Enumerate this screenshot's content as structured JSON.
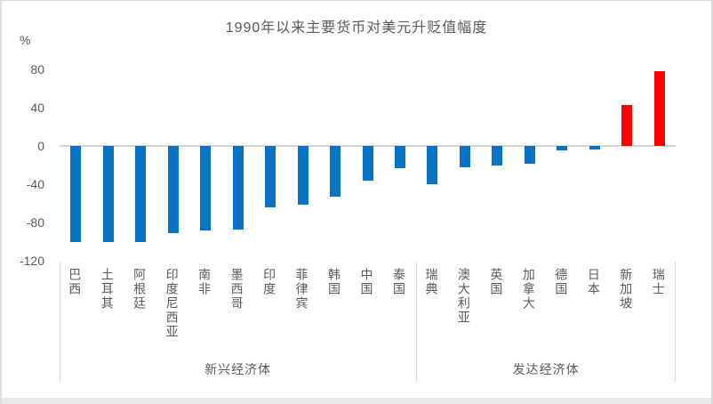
{
  "chart": {
    "title": "1990年以来主要货币对美元升贬值幅度",
    "unit_label": "%"
  },
  "chart_data": {
    "type": "bar",
    "title": "1990年以来主要货币对美元升贬值幅度",
    "ylabel": "%",
    "xlabel": "",
    "ylim": [
      -120,
      80
    ],
    "yticks": [
      80,
      40,
      0,
      -40,
      -80,
      -120
    ],
    "grid": false,
    "legend": null,
    "categories": [
      "巴西",
      "土耳其",
      "阿根廷",
      "印度尼西亚",
      "南非",
      "墨西哥",
      "印度",
      "菲律宾",
      "韩国",
      "中国",
      "泰国",
      "瑞典",
      "澳大利亚",
      "英国",
      "加拿大",
      "德国",
      "日本",
      "新加坡",
      "瑞士"
    ],
    "values": [
      -100,
      -100,
      -100,
      -91,
      -88,
      -87,
      -64,
      -61,
      -53,
      -36,
      -23,
      -40,
      -22,
      -20,
      -19,
      -5,
      -4,
      43,
      78
    ],
    "groups": [
      {
        "label": "新兴经济体",
        "from": 0,
        "to": 10
      },
      {
        "label": "发达经济体",
        "from": 11,
        "to": 18
      }
    ],
    "colors": {
      "negative_bar": "#0a73c3",
      "positive_bar": "#ff0000",
      "axis_line": "#d6d6d6",
      "text": "#595959"
    }
  }
}
